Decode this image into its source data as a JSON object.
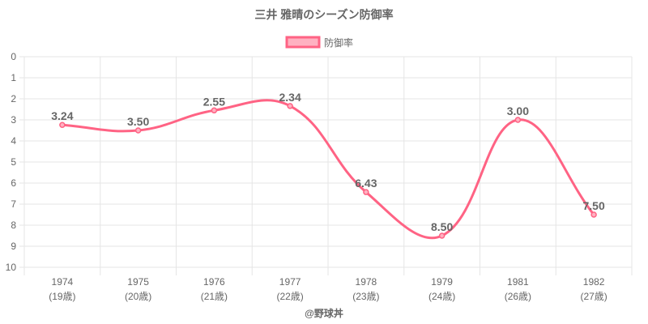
{
  "chart_data": {
    "type": "line",
    "title": "三井 雅晴のシーズン防御率",
    "categories": [
      "1974",
      "1975",
      "1976",
      "1977",
      "1978",
      "1979",
      "1981",
      "1982"
    ],
    "sublabels": [
      "(19歳)",
      "(20歳)",
      "(21歳)",
      "(22歳)",
      "(23歳)",
      "(24歳)",
      "(26歳)",
      "(27歳)"
    ],
    "series": [
      {
        "name": "防御率",
        "values": [
          3.24,
          3.5,
          2.55,
          2.34,
          6.43,
          8.5,
          3.0,
          7.5
        ]
      }
    ],
    "data_labels": [
      "3.24",
      "3.50",
      "2.55",
      "2.34",
      "6.43",
      "8.50",
      "3.00",
      "7.50"
    ],
    "ylim": [
      0,
      10
    ],
    "y_reversed": true,
    "yticks": [
      "0",
      "1",
      "2",
      "3",
      "4",
      "5",
      "6",
      "7",
      "8",
      "9",
      "10"
    ],
    "grid": true,
    "legend": "top",
    "colors": {
      "line": "#ff6384",
      "fill": "#ffb1c1",
      "grid": "#e5e5e5",
      "text": "#666666"
    },
    "footer": "@野球丼"
  }
}
